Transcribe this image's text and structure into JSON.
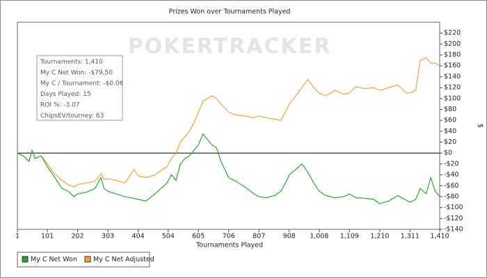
{
  "chart_data": {
    "type": "line",
    "title": "Prizes Won over Tournaments Played",
    "x_label": "Tournaments Played",
    "y_label": "$",
    "watermark": "POKERTRACKER",
    "annotations": [
      "Tournaments: 1,410",
      "My C Net Won: -$79,50",
      "My C / Tournament: -$0.06",
      "Days Played: 15",
      "ROI %: -3.07",
      "ChipsEV/tourney: 63"
    ],
    "x": [
      1,
      20,
      40,
      50,
      60,
      80,
      101,
      120,
      150,
      170,
      190,
      202,
      230,
      260,
      280,
      290,
      303,
      330,
      360,
      390,
      404,
      430,
      460,
      480,
      500,
      515,
      530,
      545,
      560,
      575,
      590,
      605,
      620,
      635,
      650,
      665,
      680,
      706,
      730,
      760,
      790,
      807,
      830,
      860,
      880,
      900,
      908,
      930,
      950,
      970,
      990,
      1008,
      1030,
      1060,
      1090,
      1109,
      1130,
      1160,
      1190,
      1210,
      1240,
      1270,
      1300,
      1311,
      1330,
      1345,
      1365,
      1380,
      1395,
      1410
    ],
    "series": [
      {
        "name": "My C Net Won",
        "color": "#2aa52a",
        "values": [
          0,
          -5,
          -15,
          5,
          -10,
          -5,
          -25,
          -40,
          -65,
          -70,
          -80,
          -75,
          -72,
          -65,
          -45,
          -65,
          -70,
          -75,
          -80,
          -83,
          -85,
          -88,
          -75,
          -65,
          -55,
          -40,
          -50,
          -20,
          -10,
          -5,
          5,
          15,
          35,
          25,
          15,
          10,
          -15,
          -45,
          -52,
          -62,
          -75,
          -80,
          -82,
          -78,
          -70,
          -50,
          -40,
          -30,
          -20,
          -35,
          -55,
          -70,
          -78,
          -82,
          -80,
          -75,
          -82,
          -83,
          -85,
          -93,
          -88,
          -78,
          -87,
          -90,
          -85,
          -65,
          -75,
          -45,
          -70,
          -80
        ]
      },
      {
        "name": "My C Net Adjusted",
        "color": "#f0a035",
        "values": [
          0,
          -5,
          -15,
          5,
          -10,
          -5,
          -20,
          -35,
          -50,
          -58,
          -62,
          -58,
          -55,
          -52,
          -38,
          -48,
          -47,
          -50,
          -55,
          -30,
          -42,
          -45,
          -40,
          -32,
          -25,
          -10,
          0,
          20,
          30,
          40,
          55,
          75,
          95,
          100,
          105,
          100,
          90,
          75,
          70,
          68,
          65,
          68,
          65,
          62,
          60,
          80,
          90,
          105,
          120,
          135,
          120,
          110,
          105,
          115,
          108,
          110,
          122,
          118,
          120,
          115,
          120,
          125,
          110,
          110,
          115,
          170,
          175,
          165,
          165,
          160
        ]
      }
    ],
    "xlim": [
      1,
      1410
    ],
    "xticks": [
      1,
      101,
      202,
      303,
      404,
      504,
      605,
      706,
      807,
      908,
      {
        "value": 1008,
        "label": "1,008"
      },
      {
        "value": 1109,
        "label": "1,109"
      },
      {
        "value": 1210,
        "label": "1,210"
      },
      {
        "value": 1311,
        "label": "1,311"
      },
      {
        "value": 1410,
        "label": "1,410"
      }
    ],
    "ylim": [
      -140,
      240
    ],
    "yticks": [
      {
        "value": -140,
        "label": "-$140"
      },
      {
        "value": -120,
        "label": "-$120"
      },
      {
        "value": -100,
        "label": "-$100"
      },
      {
        "value": -80,
        "label": "-$80"
      },
      {
        "value": -60,
        "label": "-$60"
      },
      {
        "value": -40,
        "label": "-$40"
      },
      {
        "value": -20,
        "label": "-$20"
      },
      {
        "value": 0,
        "label": "$0"
      },
      {
        "value": 20,
        "label": "$20"
      },
      {
        "value": 40,
        "label": "$40"
      },
      {
        "value": 60,
        "label": "$60"
      },
      {
        "value": 80,
        "label": "$80"
      },
      {
        "value": 100,
        "label": "$100"
      },
      {
        "value": 120,
        "label": "$120"
      },
      {
        "value": 140,
        "label": "$140"
      },
      {
        "value": 160,
        "label": "$160"
      },
      {
        "value": 180,
        "label": "$180"
      },
      {
        "value": 200,
        "label": "$200"
      },
      {
        "value": 220,
        "label": "$220"
      }
    ],
    "grid": false,
    "legend": "bottom-left"
  }
}
